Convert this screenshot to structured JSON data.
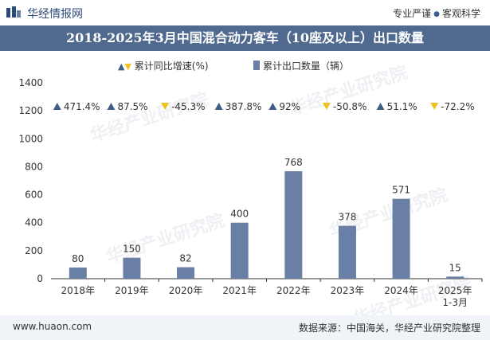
{
  "header": {
    "brand": "华经情报网",
    "tagline_left": "专业严谨",
    "tagline_right": "客观科学"
  },
  "title": "2018-2025年3月中国混合动力客车（10座及以上）出口数量",
  "legend": {
    "growth_label": "累计同比增速(%)",
    "volume_label": "累计出口数量（辆）"
  },
  "watermark": "华经产业研究院",
  "footer": {
    "url": "www.huaon.com",
    "source": "数据来源：中国海关，华经产业研究院整理"
  },
  "colors": {
    "bar": "#6a7fa6",
    "title_bg": "#506a8f",
    "up": "#3f5e87",
    "down": "#f0c21d"
  },
  "chart_data": {
    "type": "bar",
    "categories": [
      "2018年",
      "2019年",
      "2020年",
      "2021年",
      "2022年",
      "2023年",
      "2024年",
      "2025年\n1-3月"
    ],
    "series": [
      {
        "name": "累计出口数量（辆）",
        "values": [
          80,
          150,
          82,
          400,
          768,
          378,
          571,
          15
        ]
      },
      {
        "name": "累计同比增速(%)",
        "values": [
          471.4,
          87.5,
          -45.3,
          387.8,
          92,
          -50.8,
          51.1,
          -72.2
        ],
        "labels": [
          "471.4%",
          "87.5%",
          "-45.3%",
          "387.8%",
          "92%",
          "-50.8%",
          "51.1%",
          "-72.2%"
        ]
      }
    ],
    "ylim": [
      0,
      1400
    ],
    "yticks": [
      0,
      200,
      400,
      600,
      800,
      1000,
      1200,
      1400
    ],
    "grid": false,
    "legend_position": "top"
  }
}
